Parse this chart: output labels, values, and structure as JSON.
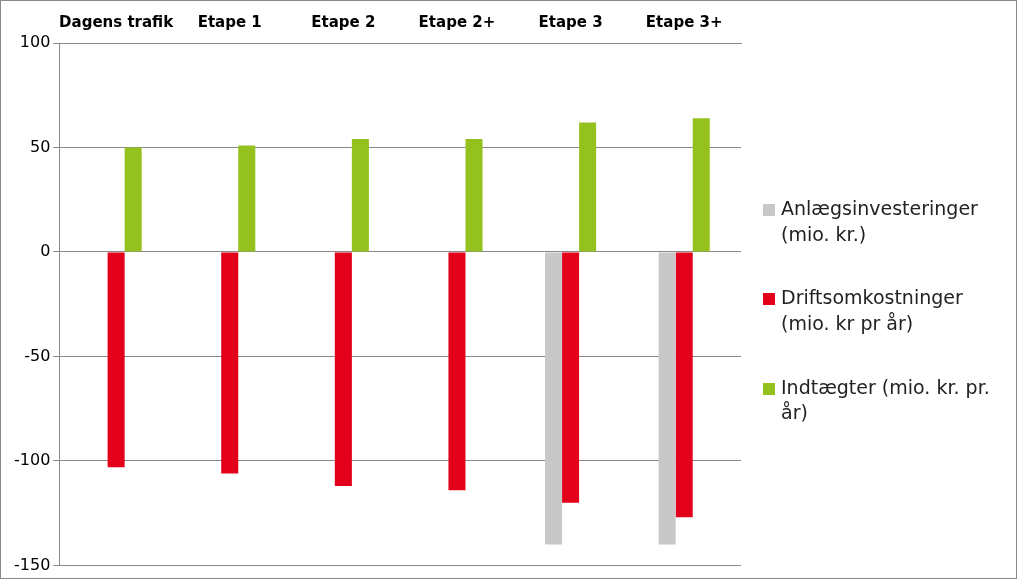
{
  "chart_data": {
    "type": "bar",
    "categories": [
      "Dagens trafik",
      "Etape 1",
      "Etape 2",
      "Etape 2+",
      "Etape 3",
      "Etape 3+"
    ],
    "series": [
      {
        "name": "Anlægsinvesteringer (mio. kr.)",
        "color": "#c8c8c8",
        "values": [
          null,
          null,
          null,
          null,
          -140,
          -140
        ]
      },
      {
        "name": "Driftsomkostninger (mio. kr pr år)",
        "color": "#e2001a",
        "values": [
          -103,
          -106,
          -112,
          -114,
          -120,
          -127
        ]
      },
      {
        "name": "Indtægter (mio. kr. pr. år)",
        "color": "#95c11f",
        "values": [
          50,
          51,
          54,
          54,
          62,
          64
        ]
      }
    ],
    "ylim": [
      -150,
      100
    ],
    "yticks": [
      -150,
      -100,
      -50,
      0,
      50,
      100
    ],
    "grid": "y",
    "legend": "right"
  }
}
